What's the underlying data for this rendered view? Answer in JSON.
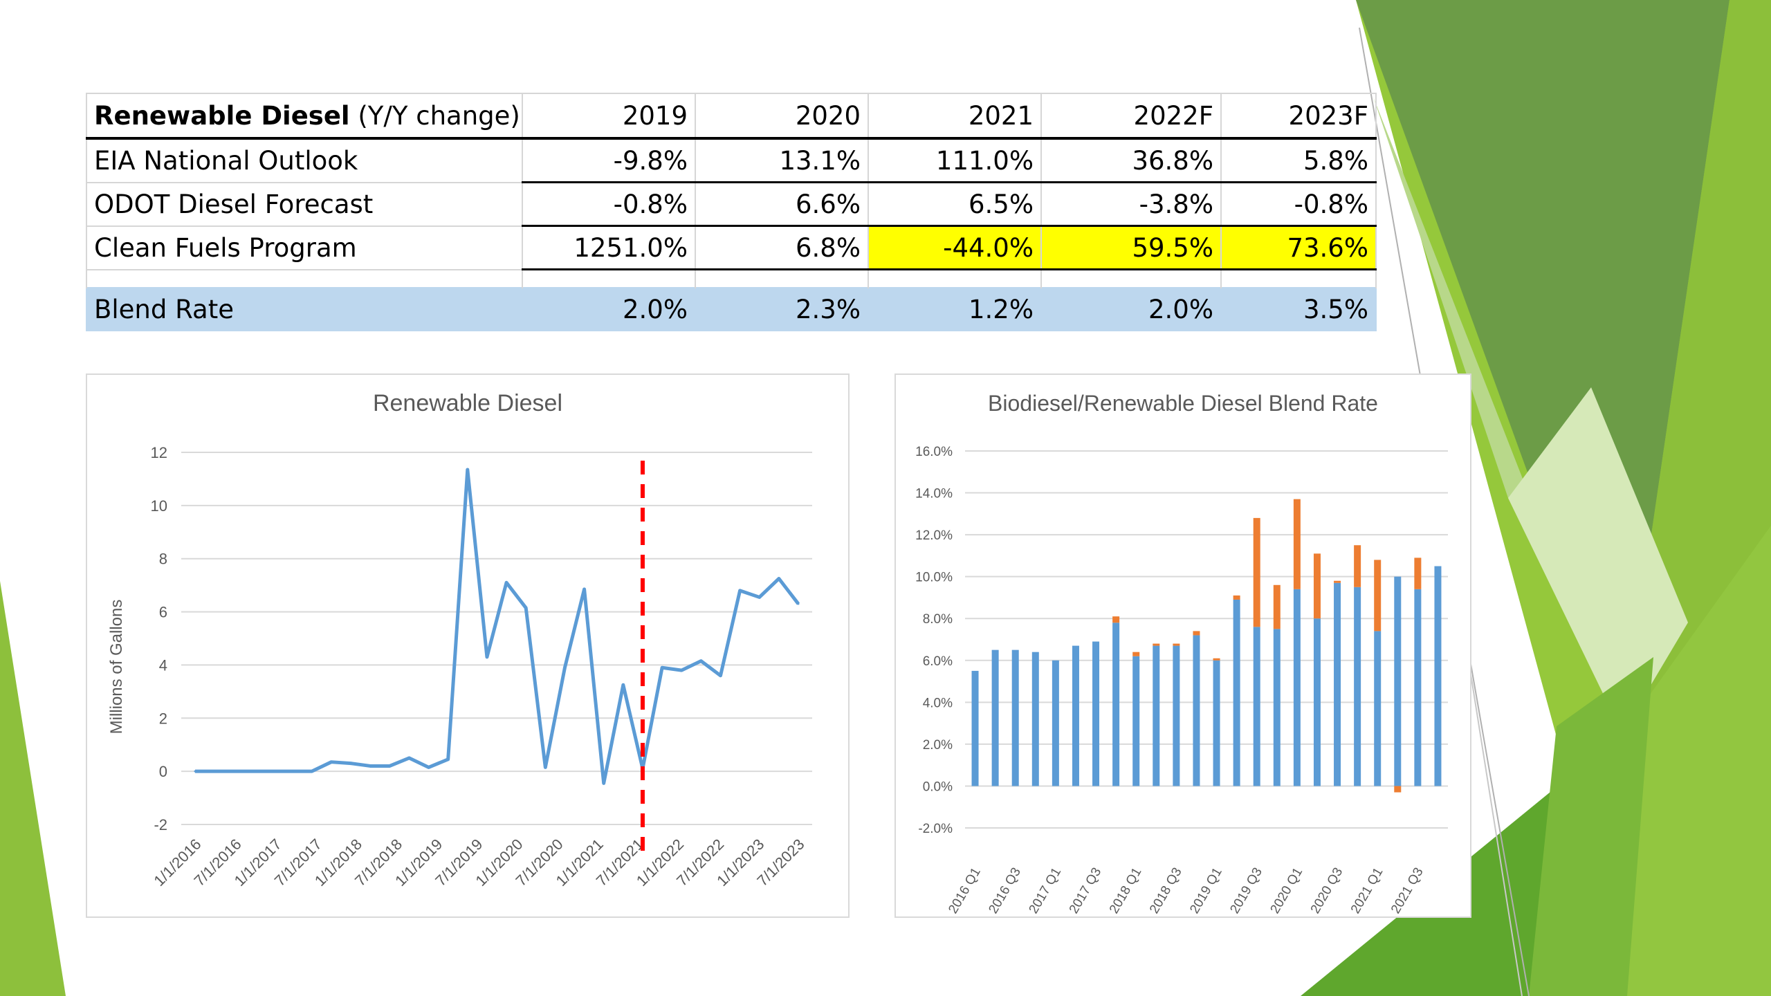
{
  "table": {
    "header": {
      "bold": "Renewable Diesel",
      "rest": " (Y/Y change)",
      "years": [
        "2019",
        "2020",
        "2021",
        "2022F",
        "2023F"
      ]
    },
    "rows": [
      {
        "label": "EIA National Outlook",
        "values": [
          "-9.8%",
          "13.1%",
          "111.0%",
          "36.8%",
          "5.8%"
        ]
      },
      {
        "label": "ODOT Diesel Forecast",
        "values": [
          "-0.8%",
          "6.6%",
          "6.5%",
          "-3.8%",
          "-0.8%"
        ]
      },
      {
        "label": "Clean Fuels Program",
        "values": [
          "1251.0%",
          "6.8%",
          "-44.0%",
          "59.5%",
          "73.6%"
        ]
      }
    ],
    "blend": {
      "label": "Blend Rate",
      "values": [
        "2.0%",
        "2.3%",
        "1.2%",
        "2.0%",
        "3.5%"
      ]
    },
    "highlight_color": "#ffff00",
    "blend_color": "#bdd7ee"
  },
  "chart_data": [
    {
      "type": "line",
      "title": "Renewable Diesel",
      "ylabel": "Millions of Gallons",
      "ylim": [
        -2,
        12
      ],
      "yticks": [
        "12",
        "10",
        "8",
        "6",
        "4",
        "2",
        "0",
        "-2"
      ],
      "xtick_labels": [
        "1/1/2016",
        "7/1/2016",
        "1/1/2017",
        "7/1/2017",
        "1/1/2018",
        "7/1/2018",
        "1/1/2019",
        "7/1/2019",
        "1/1/2020",
        "7/1/2020",
        "1/1/2021",
        "7/1/2021",
        "1/1/2022",
        "7/1/2022",
        "1/1/2023",
        "7/1/2023"
      ],
      "values": [
        0,
        0,
        0,
        0,
        0,
        0,
        0,
        0.35,
        0.3,
        0.2,
        0.2,
        0.5,
        0.15,
        0.45,
        11.35,
        4.3,
        7.1,
        6.15,
        0.15,
        3.9,
        6.85,
        -0.45,
        3.25,
        0.1,
        3.9,
        3.8,
        4.15,
        3.6,
        6.8,
        6.55,
        7.25,
        6.3
      ],
      "forecast_marker_index": 23,
      "grid": true,
      "line_color": "#5b9bd5",
      "marker_color": "#ff0000"
    },
    {
      "type": "bar",
      "stacked": true,
      "title": "Biodiesel/Renewable Diesel Blend Rate",
      "ylim": [
        -2,
        16
      ],
      "yticks": [
        "16.0%",
        "14.0%",
        "12.0%",
        "10.0%",
        "8.0%",
        "6.0%",
        "4.0%",
        "2.0%",
        "0.0%",
        "-2.0%"
      ],
      "xtick_labels": [
        "2016 Q1",
        "2016 Q3",
        "2017 Q1",
        "2017 Q3",
        "2018 Q1",
        "2018 Q3",
        "2019 Q1",
        "2019 Q3",
        "2020 Q1",
        "2020 Q3",
        "2021 Q1",
        "2021 Q3"
      ],
      "series": [
        {
          "values": [
            5.5,
            6.5,
            6.5,
            6.4,
            6.0,
            6.7,
            6.9,
            7.8,
            6.2,
            6.7,
            6.7,
            7.2,
            6.0,
            8.9,
            7.6,
            7.5,
            9.4,
            8.0,
            9.7,
            9.5,
            7.4,
            10.0,
            9.4,
            10.5
          ],
          "color": "#5b9bd5"
        },
        {
          "values": [
            0,
            0,
            0,
            0,
            0,
            0,
            0,
            0.3,
            0.2,
            0.1,
            0.1,
            0.2,
            0.1,
            0.2,
            5.2,
            2.1,
            4.3,
            3.1,
            0.1,
            2.0,
            3.4,
            -0.3,
            1.5,
            0
          ],
          "color": "#ed7d31"
        }
      ],
      "grid": true
    }
  ]
}
